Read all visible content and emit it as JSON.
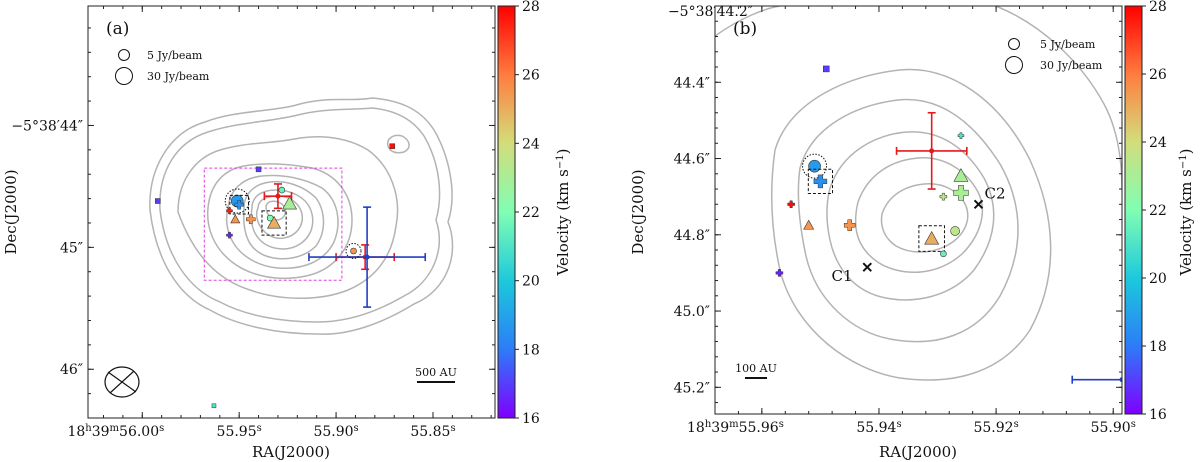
{
  "colorbar": {
    "label": "Velocity (km s",
    "label_sup": "−1",
    "label_close": ")",
    "min": 16,
    "max": 28,
    "ticks": [
      "16",
      "18",
      "20",
      "22",
      "24",
      "26",
      "28"
    ]
  },
  "chart_data": [
    {
      "type": "scatter",
      "panel_label": "(a)",
      "xlabel": "RA(J2000)",
      "ylabel": "Dec(J2000)",
      "x_ticks": [
        {
          "pre": "18",
          "h": "h",
          "mid": "39",
          "m": "m",
          "sec": "56.00",
          "s": "s"
        },
        {
          "sec": "55.95",
          "s": "s"
        },
        {
          "sec": "55.90",
          "s": "s"
        },
        {
          "sec": "55.85",
          "s": "s"
        }
      ],
      "x_ticks_sec": [
        56.0,
        55.95,
        55.9,
        55.85
      ],
      "xlim_sec": [
        56.028,
        55.818
      ],
      "y_ticks": [
        "−5°38′44″",
        "45″",
        "46″"
      ],
      "y_ticks_arcsec": [
        44.0,
        45.0,
        46.0
      ],
      "ylim_arcsec": [
        43.02,
        46.4
      ],
      "size_legend": [
        {
          "label": "5 Jy/beam"
        },
        {
          "label": "30 Jy/beam"
        }
      ],
      "scalebar_label": "500 AU",
      "points": [
        {
          "ra_s": 55.951,
          "dec": 44.62,
          "vel": 18.8,
          "shape": "circle",
          "size": 12,
          "dotted_circle": true
        },
        {
          "ra_s": 55.95,
          "dec": 44.65,
          "vel": 18.5,
          "shape": "plus",
          "size": 9,
          "dashed_box": true
        },
        {
          "ra_s": 55.928,
          "dec": 44.53,
          "vel": 21.5,
          "shape": "circle",
          "size": 6
        },
        {
          "ra_s": 55.924,
          "dec": 44.64,
          "vel": 23.0,
          "shape": "triangle",
          "size": 14
        },
        {
          "ra_s": 55.932,
          "dec": 44.8,
          "vel": 25.0,
          "shape": "triangle",
          "size": 13,
          "dashed_box": true
        },
        {
          "ra_s": 55.934,
          "dec": 44.76,
          "vel": 22.0,
          "shape": "circle",
          "size": 6
        },
        {
          "ra_s": 55.952,
          "dec": 44.77,
          "vel": 25.5,
          "shape": "triangle",
          "size": 9
        },
        {
          "ra_s": 55.944,
          "dec": 44.77,
          "vel": 25.5,
          "shape": "plus",
          "size": 9
        },
        {
          "ra_s": 55.955,
          "dec": 44.7,
          "vel": 27.5,
          "shape": "plus",
          "size": 6
        },
        {
          "ra_s": 55.955,
          "dec": 44.9,
          "vel": 16.5,
          "shape": "plus",
          "size": 6
        },
        {
          "ra_s": 55.94,
          "dec": 44.36,
          "vel": 17.0,
          "shape": "square",
          "size": 5
        },
        {
          "ra_s": 55.992,
          "dec": 44.62,
          "vel": 17.0,
          "shape": "square",
          "size": 5
        },
        {
          "ra_s": 55.871,
          "dec": 44.17,
          "vel": 27.8,
          "shape": "square",
          "size": 5
        },
        {
          "ra_s": 55.891,
          "dec": 45.03,
          "vel": 25.5,
          "shape": "circle",
          "size": 6,
          "dotted_circle": true
        },
        {
          "ra_s": 55.963,
          "dec": 46.3,
          "vel": 21.0,
          "shape": "square",
          "size": 4
        }
      ],
      "error_crosses": [
        {
          "ra_s": 55.93,
          "dec": 44.58,
          "x_err": 0.007,
          "y_err": 0.1,
          "color": "#e41a1c"
        },
        {
          "ra_s": 55.885,
          "dec": 45.08,
          "x_err": 0.015,
          "y_err": 0.1,
          "color": "#e41a1c"
        },
        {
          "ra_s": 55.884,
          "dec": 45.08,
          "x_err": 0.03,
          "y_err": 0.41,
          "color": "#1f3fc4"
        }
      ],
      "zoom_box": {
        "ra_s": [
          55.968,
          55.897
        ],
        "dec": [
          44.35,
          45.27
        ]
      }
    },
    {
      "type": "scatter",
      "panel_label": "(b)",
      "xlabel": "RA(J2000)",
      "ylabel": "Dec(J2000)",
      "x_ticks": [
        {
          "pre": "18",
          "h": "h",
          "mid": "39",
          "m": "m",
          "sec": "55.96",
          "s": "s"
        },
        {
          "sec": "55.94",
          "s": "s"
        },
        {
          "sec": "55.92",
          "s": "s"
        },
        {
          "sec": "55.90",
          "s": "s"
        }
      ],
      "x_ticks_sec": [
        55.96,
        55.94,
        55.92,
        55.9
      ],
      "xlim_sec": [
        55.968,
        55.8985
      ],
      "y_ticks": [
        "−5°38′44.2″",
        "44.4″",
        "44.6″",
        "44.8″",
        "45.0″",
        "45.2″"
      ],
      "y_ticks_arcsec": [
        44.2,
        44.4,
        44.6,
        44.8,
        45.0,
        45.2
      ],
      "ylim_arcsec": [
        44.2,
        45.27
      ],
      "size_legend": [
        {
          "label": "5 Jy/beam"
        },
        {
          "label": "30 Jy/beam"
        }
      ],
      "scalebar_label": "100 AU",
      "labels": [
        {
          "text": "C1",
          "ra_s": 55.944,
          "dec": 44.885
        },
        {
          "text": "C2",
          "ra_s": 55.923,
          "dec": 44.72
        }
      ],
      "points": [
        {
          "ra_s": 55.951,
          "dec": 44.62,
          "vel": 18.8,
          "shape": "circle",
          "size": 12,
          "dotted_circle": true
        },
        {
          "ra_s": 55.95,
          "dec": 44.66,
          "vel": 18.5,
          "shape": "plus",
          "size": 13,
          "dashed_box": true
        },
        {
          "ra_s": 55.955,
          "dec": 44.72,
          "vel": 27.8,
          "shape": "plus",
          "size": 7
        },
        {
          "ra_s": 55.952,
          "dec": 44.775,
          "vel": 25.5,
          "shape": "triangle",
          "size": 10
        },
        {
          "ra_s": 55.945,
          "dec": 44.775,
          "vel": 25.5,
          "shape": "plus",
          "size": 11
        },
        {
          "ra_s": 55.957,
          "dec": 44.9,
          "vel": 16.5,
          "shape": "plus",
          "size": 7
        },
        {
          "ra_s": 55.949,
          "dec": 44.365,
          "vel": 17.0,
          "shape": "square",
          "size": 6
        },
        {
          "ra_s": 55.931,
          "dec": 44.81,
          "vel": 25.0,
          "shape": "triangle",
          "size": 14,
          "dashed_box": true
        },
        {
          "ra_s": 55.927,
          "dec": 44.79,
          "vel": 23.5,
          "shape": "circle",
          "size": 9
        },
        {
          "ra_s": 55.929,
          "dec": 44.85,
          "vel": 21.5,
          "shape": "circle",
          "size": 6
        },
        {
          "ra_s": 55.926,
          "dec": 44.645,
          "vel": 23.0,
          "shape": "triangle",
          "size": 14
        },
        {
          "ra_s": 55.926,
          "dec": 44.69,
          "vel": 23.0,
          "shape": "plus",
          "size": 15
        },
        {
          "ra_s": 55.929,
          "dec": 44.7,
          "vel": 23.5,
          "shape": "plus",
          "size": 7
        },
        {
          "ra_s": 55.926,
          "dec": 44.54,
          "vel": 21.0,
          "shape": "plus",
          "size": 6
        }
      ],
      "cross_markers": [
        {
          "name": "C1",
          "ra_s": 55.942,
          "dec": 44.885
        },
        {
          "name": "C2",
          "ra_s": 55.923,
          "dec": 44.72
        }
      ],
      "error_crosses": [
        {
          "ra_s": 55.931,
          "dec": 44.58,
          "x_err": 0.006,
          "y_err": 0.1,
          "color": "#e41a1c"
        },
        {
          "ra_s": 55.8985,
          "dec": 45.18,
          "x_err": 0.0085,
          "y_err": 0.0,
          "color": "#1f3fc4"
        }
      ]
    }
  ]
}
